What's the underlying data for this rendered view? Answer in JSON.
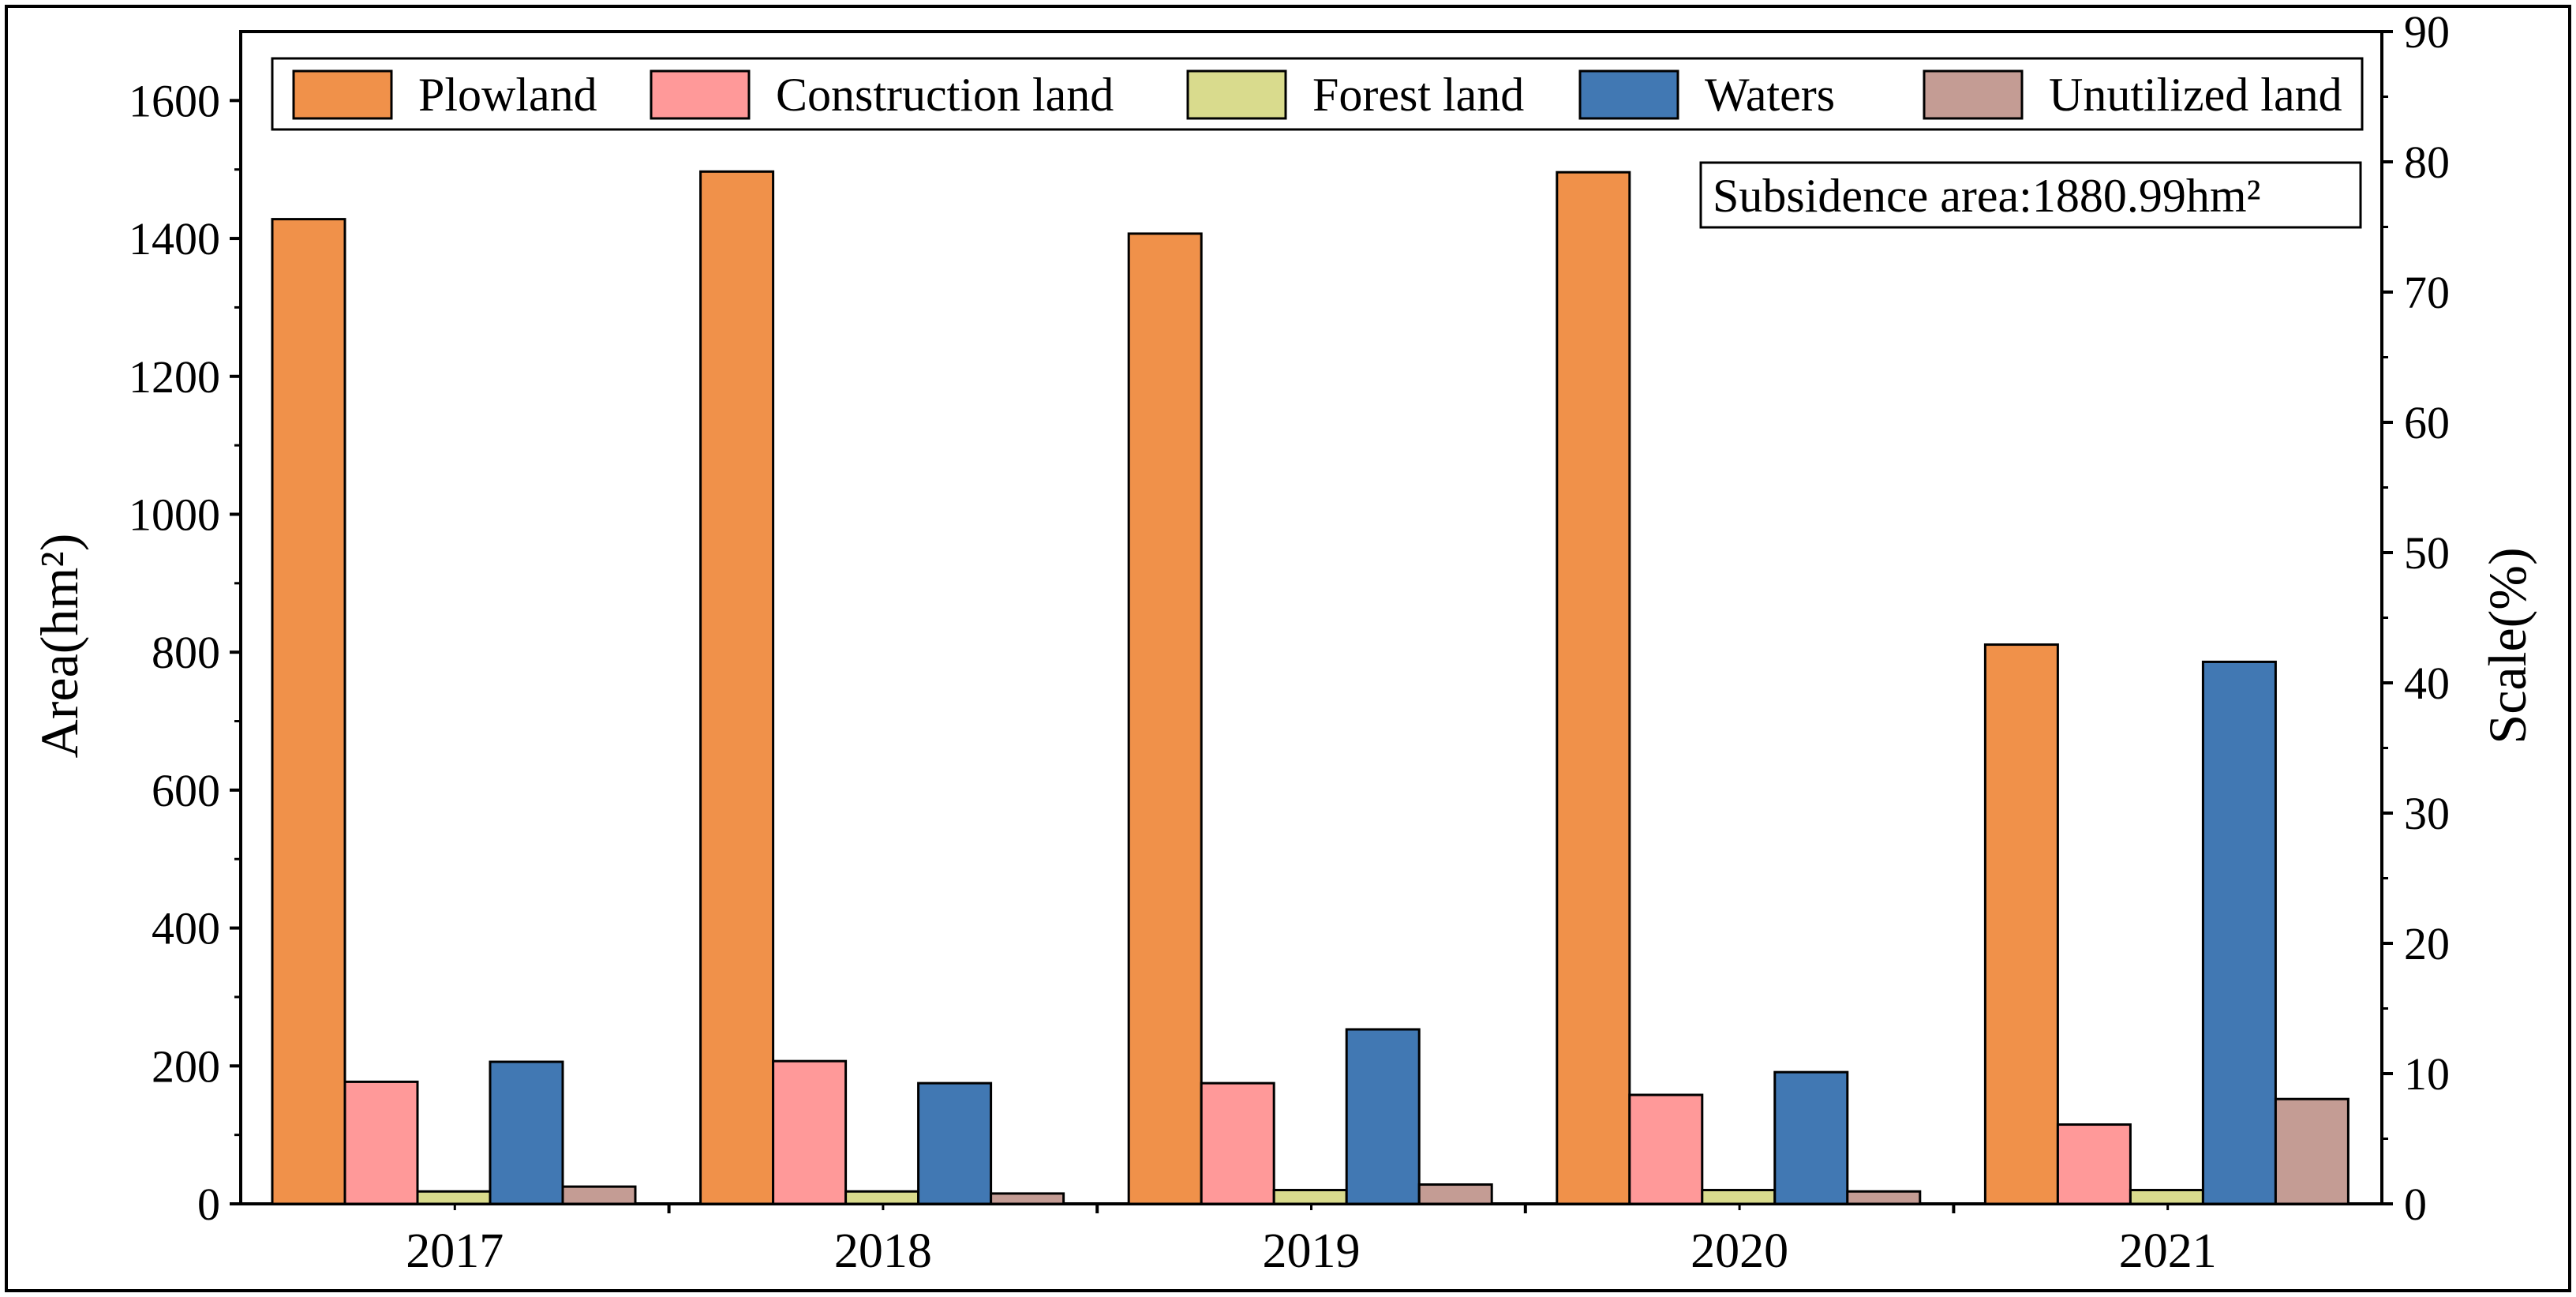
{
  "chart_data": {
    "type": "bar",
    "title": "",
    "xlabel": "",
    "ylabel": "Area(hm²)",
    "y2label": "Scale(%)",
    "categories": [
      "2017",
      "2018",
      "2019",
      "2020",
      "2021"
    ],
    "ylim": [
      0,
      1700
    ],
    "y_ticks": [
      0,
      200,
      400,
      600,
      800,
      1000,
      1200,
      1400,
      1600
    ],
    "y2lim": [
      0,
      90
    ],
    "y2_ticks": [
      0,
      10,
      20,
      30,
      40,
      50,
      60,
      70,
      80,
      90
    ],
    "series": [
      {
        "name": "Plowland",
        "color": "#F0914A",
        "values": [
          1428,
          1497,
          1407,
          1496,
          811
        ]
      },
      {
        "name": "Construction land",
        "color": "#FF9999",
        "values": [
          177,
          207,
          175,
          158,
          115
        ]
      },
      {
        "name": "Forest land",
        "color": "#D9DB8D",
        "values": [
          18,
          18,
          20,
          20,
          20
        ]
      },
      {
        "name": "Waters",
        "color": "#4178B3",
        "values": [
          206,
          175,
          253,
          191,
          786
        ]
      },
      {
        "name": "Unutilized land",
        "color": "#C49C94",
        "values": [
          25,
          15,
          28,
          18,
          152
        ]
      }
    ],
    "annotation": "Subsidence area:1880.99hm²",
    "legend_position": "top"
  }
}
